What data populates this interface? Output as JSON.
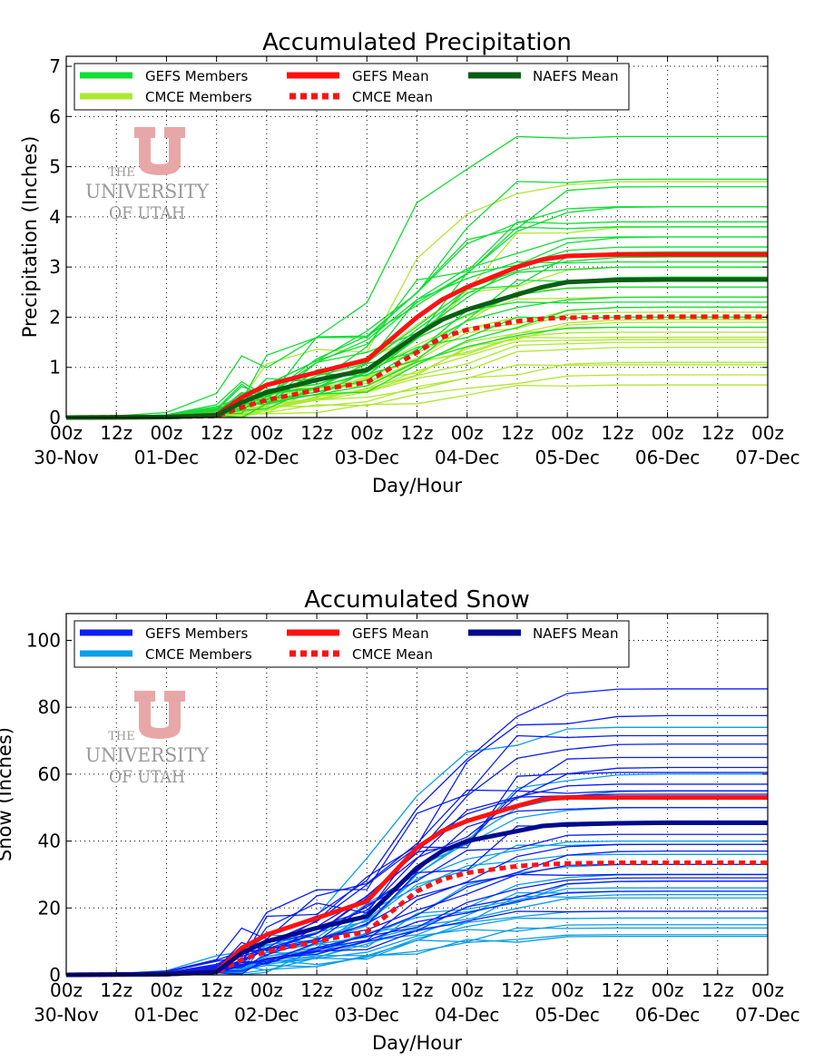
{
  "logo": {
    "line1": "THE",
    "line2": "UNIVERSITY",
    "line3": "OF UTAH",
    "color": "#e8a7a7"
  },
  "chart_data": [
    {
      "id": "precip",
      "type": "line",
      "title": "Accumulated Precipitation",
      "xlabel": "Day/Hour",
      "ylabel": "Precipitation (Inches)",
      "ylim": [
        0,
        7.2
      ],
      "yticks": [
        0,
        1,
        2,
        3,
        4,
        5,
        6,
        7
      ],
      "xlim": [
        0,
        168
      ],
      "x_tick_hours": [
        0,
        12,
        24,
        36,
        48,
        60,
        72,
        84,
        96,
        108,
        120,
        132,
        144,
        156,
        168
      ],
      "x_tick_top": [
        "00z",
        "12z",
        "00z",
        "12z",
        "00z",
        "12z",
        "00z",
        "12z",
        "00z",
        "12z",
        "00z",
        "12z",
        "00z",
        "12z",
        "00z"
      ],
      "x_tick_bottom": [
        "30-Nov",
        "",
        "01-Dec",
        "",
        "02-Dec",
        "",
        "03-Dec",
        "",
        "04-Dec",
        "",
        "05-Dec",
        "",
        "06-Dec",
        "",
        "07-Dec"
      ],
      "grid": true,
      "legend": [
        "GEFS Members",
        "GEFS Mean",
        "NAEFS Mean",
        "CMCE Members",
        "CMCE Mean"
      ],
      "colors": {
        "gefs_members": "#11dd33",
        "cmce_members": "#aee832",
        "gefs_mean": "#ff1111",
        "cmce_mean": "#ff1111",
        "naefs_mean": "#0a5e14"
      },
      "series": [
        {
          "name": "GEFS Mean",
          "x": [
            0,
            24,
            36,
            42,
            48,
            60,
            72,
            84,
            90,
            96,
            108,
            114,
            120,
            132,
            144,
            156,
            168
          ],
          "values": [
            0,
            0.01,
            0.05,
            0.4,
            0.65,
            0.9,
            1.15,
            2.0,
            2.35,
            2.6,
            3.0,
            3.15,
            3.22,
            3.25,
            3.25,
            3.25,
            3.25
          ]
        },
        {
          "name": "CMCE Mean",
          "x": [
            0,
            24,
            36,
            42,
            48,
            60,
            72,
            84,
            90,
            96,
            108,
            114,
            120,
            132,
            144,
            156,
            168
          ],
          "values": [
            0,
            0.01,
            0.03,
            0.2,
            0.35,
            0.55,
            0.7,
            1.3,
            1.6,
            1.75,
            1.92,
            1.97,
            1.99,
            2.0,
            2.01,
            2.01,
            2.01
          ]
        },
        {
          "name": "NAEFS Mean",
          "x": [
            0,
            24,
            36,
            42,
            48,
            60,
            72,
            84,
            90,
            96,
            108,
            114,
            120,
            132,
            144,
            156,
            168
          ],
          "values": [
            0,
            0.01,
            0.04,
            0.3,
            0.5,
            0.75,
            0.95,
            1.65,
            1.95,
            2.15,
            2.45,
            2.6,
            2.7,
            2.74,
            2.75,
            2.75,
            2.75
          ]
        }
      ],
      "gefs_member_finals": [
        5.6,
        4.75,
        4.6,
        4.2,
        4.2,
        3.9,
        3.8,
        3.6,
        3.6,
        3.4,
        3.3,
        3.2,
        3.1,
        3.0,
        2.8,
        2.6,
        2.4,
        2.3,
        2.2,
        2.0,
        1.8
      ],
      "cmce_member_finals": [
        4.7,
        3.8,
        3.0,
        2.6,
        2.4,
        2.2,
        2.1,
        2.0,
        1.95,
        1.9,
        1.8,
        1.7,
        1.6,
        1.55,
        1.5,
        1.4,
        1.1,
        1.05,
        0.85,
        0.65
      ]
    },
    {
      "id": "snow",
      "type": "line",
      "title": "Accumulated Snow",
      "xlabel": "Day/Hour",
      "ylabel": "Snow (Inches)",
      "ylim": [
        0,
        108
      ],
      "yticks": [
        0,
        20,
        40,
        60,
        80,
        100
      ],
      "xlim": [
        0,
        168
      ],
      "x_tick_hours": [
        0,
        12,
        24,
        36,
        48,
        60,
        72,
        84,
        96,
        108,
        120,
        132,
        144,
        156,
        168
      ],
      "x_tick_top": [
        "00z",
        "12z",
        "00z",
        "12z",
        "00z",
        "12z",
        "00z",
        "12z",
        "00z",
        "12z",
        "00z",
        "12z",
        "00z",
        "12z",
        "00z"
      ],
      "x_tick_bottom": [
        "30-Nov",
        "",
        "01-Dec",
        "",
        "02-Dec",
        "",
        "03-Dec",
        "",
        "04-Dec",
        "",
        "05-Dec",
        "",
        "06-Dec",
        "",
        "07-Dec"
      ],
      "grid": true,
      "legend": [
        "GEFS Members",
        "GEFS Mean",
        "NAEFS Mean",
        "CMCE Members",
        "CMCE Mean"
      ],
      "colors": {
        "gefs_members": "#0a1ef5",
        "cmce_members": "#0a9de8",
        "gefs_mean": "#ff1111",
        "cmce_mean": "#ff1111",
        "naefs_mean": "#000a8c"
      },
      "series": [
        {
          "name": "GEFS Mean",
          "x": [
            0,
            24,
            36,
            42,
            48,
            60,
            72,
            84,
            90,
            96,
            108,
            114,
            120,
            132,
            144,
            156,
            168
          ],
          "values": [
            0,
            0.2,
            1.0,
            8.0,
            12.0,
            17.0,
            22.0,
            38.0,
            43.0,
            46.0,
            50.5,
            52.5,
            53.0,
            53.0,
            53.0,
            53.0,
            53.0
          ]
        },
        {
          "name": "CMCE Mean",
          "x": [
            0,
            24,
            36,
            42,
            48,
            60,
            72,
            84,
            90,
            96,
            108,
            114,
            120,
            132,
            144,
            156,
            168
          ],
          "values": [
            0,
            0.2,
            0.8,
            4.5,
            7.0,
            10.0,
            13.0,
            25.0,
            28.5,
            30.5,
            32.5,
            33.0,
            33.3,
            33.5,
            33.5,
            33.5,
            33.5
          ]
        },
        {
          "name": "NAEFS Mean",
          "x": [
            0,
            24,
            36,
            42,
            48,
            60,
            72,
            84,
            90,
            96,
            108,
            114,
            120,
            132,
            144,
            156,
            168
          ],
          "values": [
            0,
            0.2,
            0.9,
            6.5,
            10.0,
            14.0,
            17.5,
            32.0,
            37.0,
            40.0,
            43.0,
            44.5,
            45.0,
            45.3,
            45.5,
            45.5,
            45.5
          ]
        }
      ],
      "gefs_member_finals": [
        85.5,
        77.5,
        71.5,
        69,
        65,
        62,
        60.5,
        57,
        55,
        54,
        50,
        45,
        42,
        39,
        37,
        33,
        30,
        29,
        28,
        25,
        19
      ],
      "cmce_member_finals": [
        74,
        60,
        55,
        50,
        40,
        39,
        36,
        33,
        30,
        28,
        26,
        25,
        24,
        23,
        19,
        17,
        15,
        14,
        12,
        11.5
      ]
    }
  ]
}
